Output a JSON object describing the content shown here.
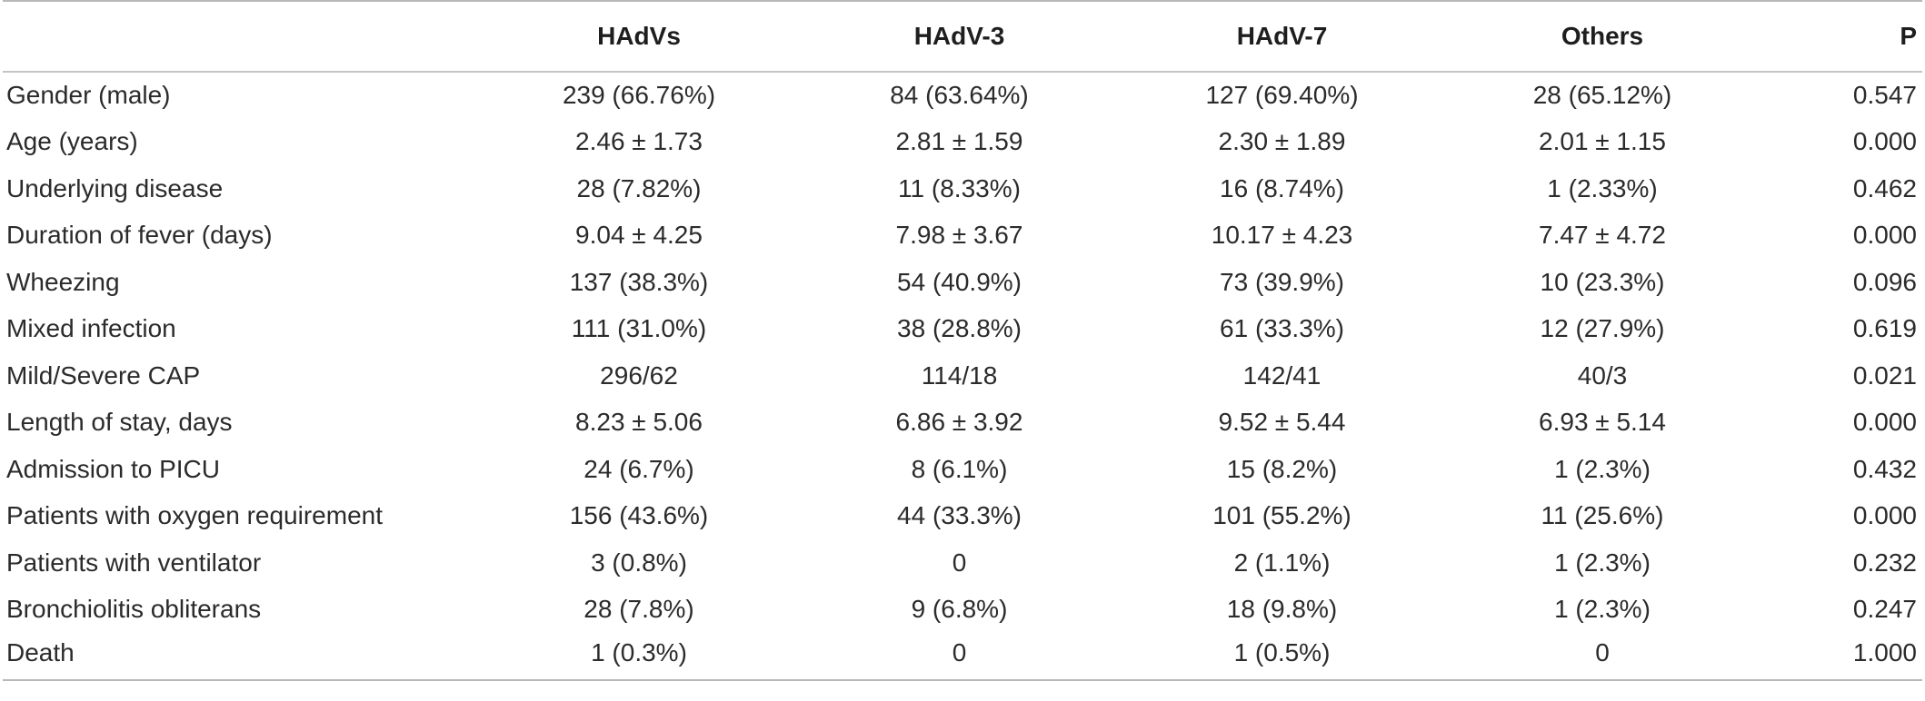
{
  "table": {
    "headers": [
      "",
      "HAdVs",
      "HAdV-3",
      "HAdV-7",
      "Others",
      "P"
    ],
    "rows": [
      {
        "label": "Gender (male)",
        "hadvs": "239 (66.76%)",
        "hadv3": "84 (63.64%)",
        "hadv7": "127 (69.40%)",
        "others": "28 (65.12%)",
        "p": "0.547"
      },
      {
        "label": "Age (years)",
        "hadvs": "2.46 ± 1.73",
        "hadv3": "2.81 ± 1.59",
        "hadv7": "2.30 ± 1.89",
        "others": "2.01 ± 1.15",
        "p": "0.000"
      },
      {
        "label": "Underlying disease",
        "hadvs": "28 (7.82%)",
        "hadv3": "11 (8.33%)",
        "hadv7": "16 (8.74%)",
        "others": "1 (2.33%)",
        "p": "0.462"
      },
      {
        "label": "Duration of fever (days)",
        "hadvs": "9.04 ± 4.25",
        "hadv3": "7.98 ± 3.67",
        "hadv7": "10.17 ± 4.23",
        "others": "7.47 ± 4.72",
        "p": "0.000"
      },
      {
        "label": "Wheezing",
        "hadvs": "137 (38.3%)",
        "hadv3": "54 (40.9%)",
        "hadv7": "73 (39.9%)",
        "others": "10 (23.3%)",
        "p": "0.096"
      },
      {
        "label": "Mixed infection",
        "hadvs": "111 (31.0%)",
        "hadv3": "38 (28.8%)",
        "hadv7": "61 (33.3%)",
        "others": "12 (27.9%)",
        "p": "0.619"
      },
      {
        "label": "Mild/Severe CAP",
        "hadvs": "296/62",
        "hadv3": "114/18",
        "hadv7": "142/41",
        "others": "40/3",
        "p": "0.021"
      },
      {
        "label": "Length of stay, days",
        "hadvs": "8.23 ± 5.06",
        "hadv3": "6.86 ± 3.92",
        "hadv7": "9.52 ± 5.44",
        "others": "6.93 ± 5.14",
        "p": "0.000"
      },
      {
        "label": "Admission to PICU",
        "hadvs": "24 (6.7%)",
        "hadv3": "8 (6.1%)",
        "hadv7": "15 (8.2%)",
        "others": "1 (2.3%)",
        "p": "0.432"
      },
      {
        "label": "Patients with oxygen requirement",
        "hadvs": "156 (43.6%)",
        "hadv3": "44 (33.3%)",
        "hadv7": "101 (55.2%)",
        "others": "11 (25.6%)",
        "p": "0.000"
      },
      {
        "label": "Patients with ventilator",
        "hadvs": "3 (0.8%)",
        "hadv3": "0",
        "hadv7": "2 (1.1%)",
        "others": "1 (2.3%)",
        "p": "0.232"
      },
      {
        "label": "Bronchiolitis obliterans",
        "hadvs": "28 (7.8%)",
        "hadv3": "9 (6.8%)",
        "hadv7": "18 (9.8%)",
        "others": "1 (2.3%)",
        "p": "0.247"
      },
      {
        "label": "Death",
        "hadvs": "1 (0.3%)",
        "hadv3": "0",
        "hadv7": "1 (0.5%)",
        "others": "0",
        "p": "1.000"
      }
    ]
  }
}
